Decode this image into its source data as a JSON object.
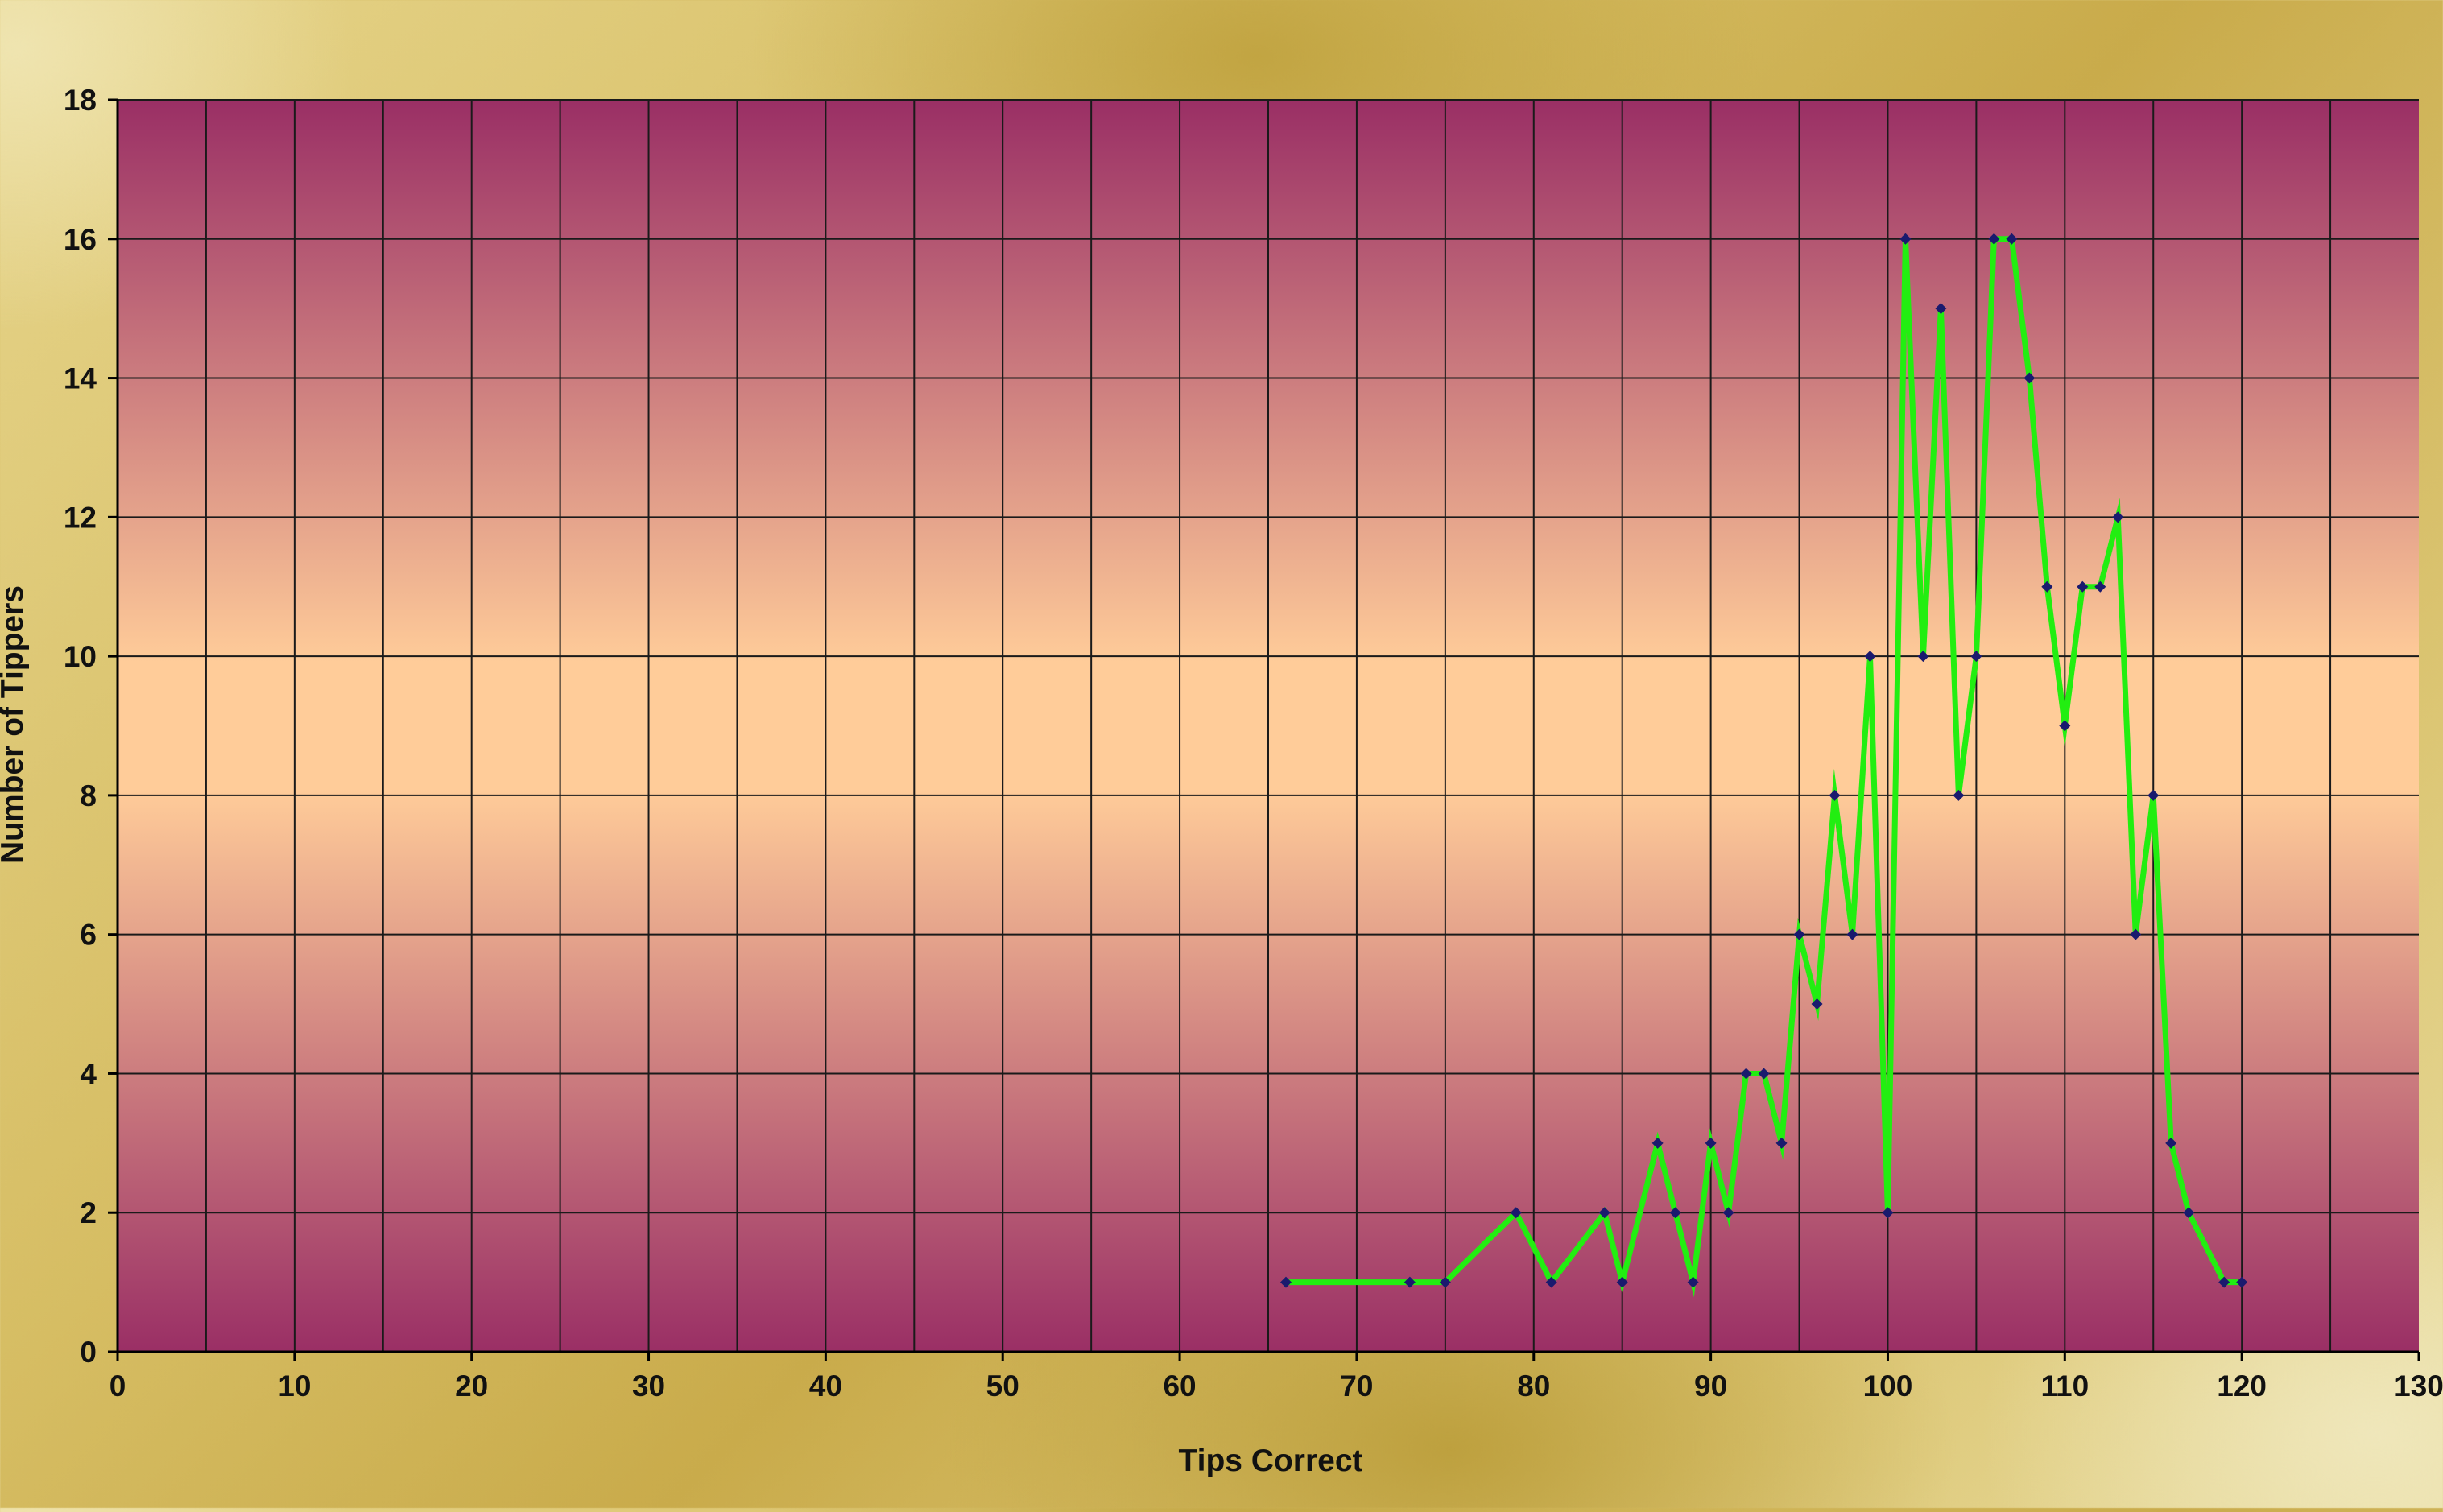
{
  "chart_data": {
    "type": "line",
    "title": "",
    "xlabel": "Tips Correct",
    "ylabel": "Number of Tippers",
    "xlim": [
      0,
      130
    ],
    "ylim": [
      0,
      18
    ],
    "x_ticks": [
      0,
      10,
      20,
      30,
      40,
      50,
      60,
      70,
      80,
      90,
      100,
      110,
      120,
      130
    ],
    "y_ticks": [
      0,
      2,
      4,
      6,
      8,
      10,
      12,
      14,
      16,
      18
    ],
    "grid": {
      "vertical_step": 5,
      "horizontal_step": 2,
      "visible": true
    },
    "legend": "none",
    "series": [
      {
        "x": [
          66,
          73,
          75,
          79,
          81,
          84,
          85,
          87,
          88,
          89,
          90,
          91,
          92,
          93,
          94,
          95,
          96,
          97,
          98,
          99,
          100,
          101,
          102,
          103,
          104,
          105,
          106,
          107,
          108,
          109,
          110,
          111,
          112,
          113,
          114,
          115,
          116,
          117,
          119,
          120
        ],
        "y": [
          1,
          1,
          1,
          2,
          1,
          2,
          1,
          3,
          2,
          1,
          3,
          2,
          4,
          4,
          3,
          6,
          5,
          8,
          6,
          10,
          2,
          16,
          10,
          15,
          8,
          10,
          16,
          16,
          14,
          11,
          9,
          11,
          11,
          12,
          6,
          8,
          3,
          2,
          1,
          1
        ]
      }
    ],
    "colors": {
      "line": "#22ee11",
      "marker": "#1a1a6e",
      "plot_edge": "#9a2f65",
      "plot_center": "#ffcc99",
      "gridline": "#1a1a1a"
    }
  }
}
